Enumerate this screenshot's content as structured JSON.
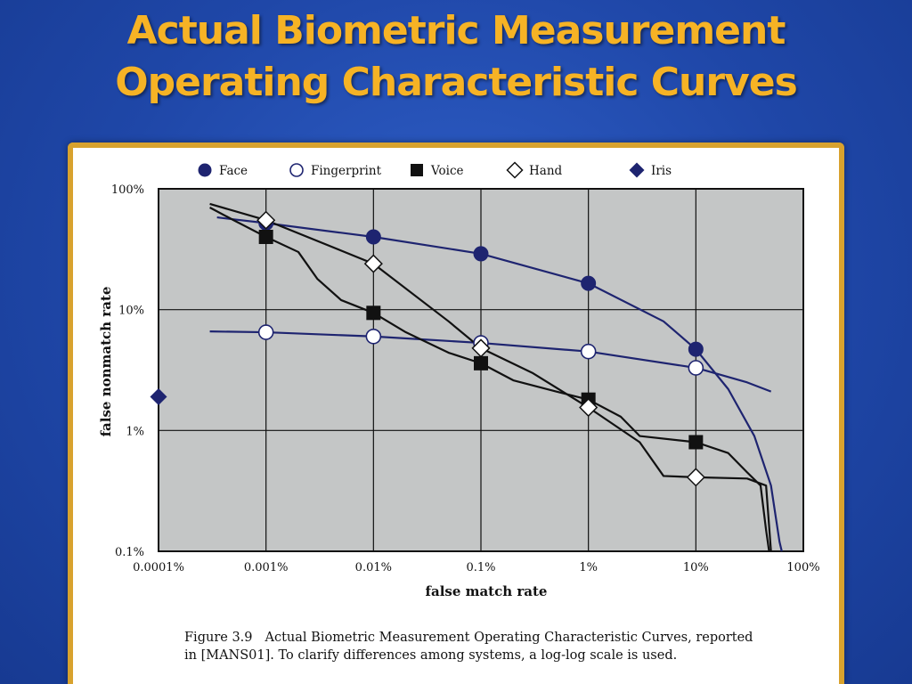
{
  "slide": {
    "title_line1": "Actual Biometric Measurement",
    "title_line2": "Operating Characteristic Curves"
  },
  "figure": {
    "caption_number": "Figure 3.9",
    "caption_line1": "Actual Biometric Measurement Operating Characteristic Curves, reported",
    "caption_line2": "in [MANS01]. To clarify differences among systems, a log-log scale is used."
  },
  "colors": {
    "title": "#f6b325",
    "frame": "#d8a22e",
    "plot_bg": "#c4c6c6",
    "navy": "#1e2470",
    "black": "#111111"
  },
  "chart_data": {
    "type": "line",
    "xlabel": "false match rate",
    "ylabel": "false nonmatch rate",
    "x_scale": "log",
    "y_scale": "log",
    "xlim": [
      0.0001,
      100
    ],
    "ylim": [
      0.1,
      100
    ],
    "x_ticks": [
      0.0001,
      0.001,
      0.01,
      0.1,
      1,
      10,
      100
    ],
    "x_tick_labels": [
      "0.0001%",
      "0.001%",
      "0.01%",
      "0.1%",
      "1%",
      "10%",
      "100%"
    ],
    "y_ticks": [
      0.1,
      1,
      10,
      100
    ],
    "y_tick_labels": [
      "0.1%",
      "1%",
      "10%",
      "100%"
    ],
    "grid": true,
    "legend_position": "top",
    "legend": [
      {
        "name": "Face",
        "marker": "circle-filled"
      },
      {
        "name": "Fingerprint",
        "marker": "circle-open"
      },
      {
        "name": "Voice",
        "marker": "square-filled"
      },
      {
        "name": "Hand",
        "marker": "diamond-open"
      },
      {
        "name": "Iris",
        "marker": "diamond-filled"
      }
    ],
    "series": [
      {
        "name": "Face",
        "marker": "circle-filled",
        "color": "#1e2470",
        "curve": [
          [
            0.00035,
            58
          ],
          [
            0.001,
            52
          ],
          [
            0.01,
            40
          ],
          [
            0.1,
            29
          ],
          [
            1,
            16.5
          ],
          [
            5,
            8
          ],
          [
            10,
            4.7
          ],
          [
            20,
            2.2
          ],
          [
            35,
            0.9
          ],
          [
            50,
            0.35
          ],
          [
            60,
            0.12
          ],
          [
            63,
            0.1
          ]
        ],
        "markers": [
          [
            0.001,
            52
          ],
          [
            0.01,
            40
          ],
          [
            0.1,
            29
          ],
          [
            1,
            16.5
          ],
          [
            10,
            4.7
          ]
        ]
      },
      {
        "name": "Fingerprint",
        "marker": "circle-open",
        "color": "#1e2470",
        "curve": [
          [
            0.0003,
            6.6
          ],
          [
            0.001,
            6.5
          ],
          [
            0.01,
            6.0
          ],
          [
            0.1,
            5.3
          ],
          [
            1,
            4.5
          ],
          [
            10,
            3.3
          ],
          [
            30,
            2.5
          ],
          [
            50,
            2.1
          ]
        ],
        "markers": [
          [
            0.001,
            6.5
          ],
          [
            0.01,
            6.0
          ],
          [
            0.1,
            5.3
          ],
          [
            1,
            4.5
          ],
          [
            10,
            3.3
          ]
        ]
      },
      {
        "name": "Voice",
        "marker": "square-filled",
        "color": "#111111",
        "curve": [
          [
            0.0003,
            70
          ],
          [
            0.0005,
            55
          ],
          [
            0.001,
            40
          ],
          [
            0.002,
            30
          ],
          [
            0.003,
            18
          ],
          [
            0.005,
            12
          ],
          [
            0.01,
            9.4
          ],
          [
            0.02,
            6.5
          ],
          [
            0.05,
            4.4
          ],
          [
            0.1,
            3.6
          ],
          [
            0.2,
            2.6
          ],
          [
            0.5,
            2.1
          ],
          [
            1,
            1.8
          ],
          [
            2,
            1.3
          ],
          [
            3,
            0.9
          ],
          [
            10,
            0.8
          ],
          [
            20,
            0.65
          ],
          [
            30,
            0.45
          ],
          [
            40,
            0.35
          ],
          [
            45,
            0.15
          ],
          [
            48,
            0.1
          ]
        ],
        "markers": [
          [
            0.001,
            40
          ],
          [
            0.01,
            9.4
          ],
          [
            0.1,
            3.6
          ],
          [
            1,
            1.8
          ],
          [
            10,
            0.8
          ]
        ]
      },
      {
        "name": "Hand",
        "marker": "diamond-open",
        "color": "#111111",
        "curve": [
          [
            0.0003,
            75
          ],
          [
            0.001,
            55
          ],
          [
            0.01,
            24
          ],
          [
            0.05,
            8
          ],
          [
            0.1,
            4.8
          ],
          [
            0.3,
            3
          ],
          [
            1,
            1.55
          ],
          [
            3,
            0.8
          ],
          [
            5,
            0.42
          ],
          [
            10,
            0.41
          ],
          [
            30,
            0.4
          ],
          [
            45,
            0.35
          ],
          [
            50,
            0.1
          ]
        ],
        "markers": [
          [
            0.001,
            55
          ],
          [
            0.01,
            24
          ],
          [
            0.1,
            4.8
          ],
          [
            1,
            1.55
          ],
          [
            10,
            0.41
          ]
        ]
      },
      {
        "name": "Iris",
        "marker": "diamond-filled",
        "color": "#1e2470",
        "curve": [],
        "markers": [
          [
            0.0001,
            1.9
          ]
        ]
      }
    ]
  }
}
